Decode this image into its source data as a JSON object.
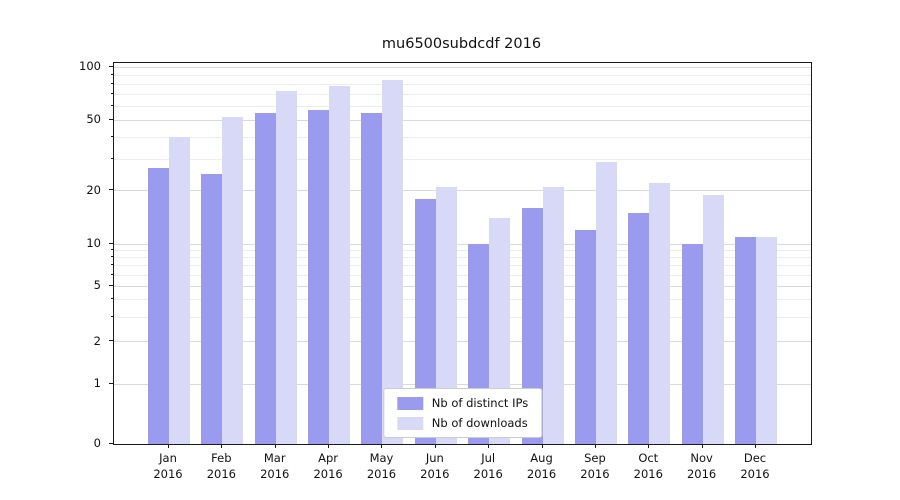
{
  "chart_data": {
    "type": "bar",
    "title": "mu6500subdcdf 2016",
    "categories": [
      "Jan",
      "Feb",
      "Mar",
      "Apr",
      "May",
      "Jun",
      "Jul",
      "Aug",
      "Sep",
      "Oct",
      "Nov",
      "Dec"
    ],
    "category_year": "2016",
    "series": [
      {
        "name": "Nb of distinct IPs",
        "color": "#9a9aef",
        "values": [
          27,
          25,
          55,
          57,
          55,
          18,
          10,
          16,
          12,
          15,
          10,
          11
        ]
      },
      {
        "name": "Nb of downloads",
        "color": "#d8d8f7",
        "values": [
          40,
          52,
          73,
          78,
          85,
          21,
          14,
          21,
          29,
          22,
          19,
          11
        ]
      }
    ],
    "yscale": "symlog",
    "ylim": [
      0,
      100
    ],
    "y_ticks": [
      0,
      1,
      2,
      5,
      10,
      20,
      50,
      100
    ],
    "y_minor_ticks": [
      3,
      4,
      6,
      7,
      8,
      9,
      30,
      40,
      60,
      70,
      80,
      90
    ],
    "grid": true,
    "legend_position": "lower center"
  }
}
